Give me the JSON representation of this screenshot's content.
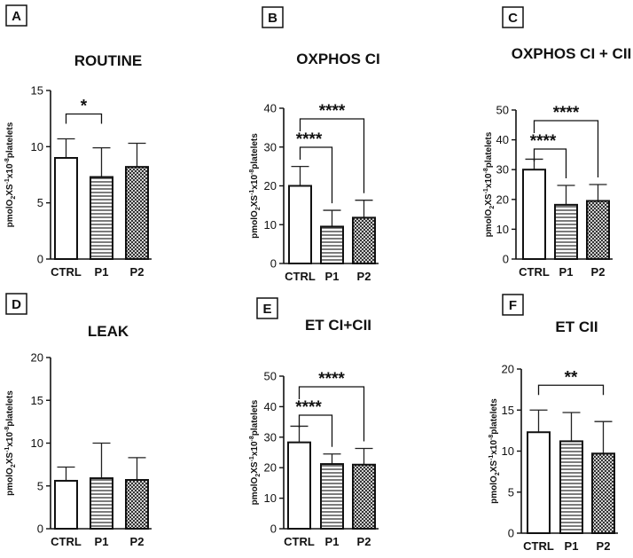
{
  "figure": {
    "y_axis_label": {
      "prefix": "pmolO",
      "sub2": "2",
      "mid": "XS",
      "sup1": "-1",
      "mid2": "x10",
      "sup2": "-8",
      "suffix": "platelets"
    }
  },
  "chart_data": [
    {
      "letter": "A",
      "type": "bar",
      "title": "ROUTINE",
      "categories": [
        "CTRL",
        "P1",
        "P2"
      ],
      "values": [
        9.0,
        7.3,
        8.2
      ],
      "errors": [
        1.7,
        2.6,
        2.1
      ],
      "ylim": [
        0,
        15
      ],
      "yticks": [
        "0",
        "5",
        "10",
        "15"
      ],
      "significance": [
        {
          "from": "CTRL",
          "to": "P1",
          "label": "*"
        }
      ]
    },
    {
      "letter": "B",
      "type": "bar",
      "title": "OXPHOS CI",
      "categories": [
        "CTRL",
        "P1",
        "P2"
      ],
      "values": [
        20.0,
        9.5,
        11.8
      ],
      "errors": [
        5.0,
        4.2,
        4.5
      ],
      "ylim": [
        0,
        40
      ],
      "yticks": [
        "0",
        "10",
        "20",
        "30",
        "40"
      ],
      "significance": [
        {
          "from": "CTRL",
          "to": "P1",
          "label": "****"
        },
        {
          "from": "CTRL",
          "to": "P2",
          "label": "****"
        }
      ]
    },
    {
      "letter": "C",
      "type": "bar",
      "title": "OXPHOS CI + CII",
      "categories": [
        "CTRL",
        "P1",
        "P2"
      ],
      "values": [
        30.0,
        18.2,
        19.5
      ],
      "errors": [
        3.5,
        6.5,
        5.5
      ],
      "ylim": [
        0,
        50
      ],
      "yticks": [
        "0",
        "10",
        "20",
        "30",
        "40",
        "50"
      ],
      "significance": [
        {
          "from": "CTRL",
          "to": "P1",
          "label": "****"
        },
        {
          "from": "CTRL",
          "to": "P2",
          "label": "****"
        }
      ]
    },
    {
      "letter": "D",
      "type": "bar",
      "title": "LEAK",
      "categories": [
        "CTRL",
        "P1",
        "P2"
      ],
      "values": [
        5.6,
        5.9,
        5.7
      ],
      "errors": [
        1.6,
        4.1,
        2.6
      ],
      "ylim": [
        0,
        20
      ],
      "yticks": [
        "0",
        "5",
        "10",
        "15",
        "20"
      ],
      "significance": []
    },
    {
      "letter": "E",
      "type": "bar",
      "title": "ET CI+CII",
      "categories": [
        "CTRL",
        "P1",
        "P2"
      ],
      "values": [
        28.3,
        21.2,
        21.0
      ],
      "errors": [
        5.3,
        3.3,
        5.3
      ],
      "ylim": [
        0,
        50
      ],
      "yticks": [
        "0",
        "10",
        "20",
        "30",
        "40",
        "50"
      ],
      "significance": [
        {
          "from": "CTRL",
          "to": "P1",
          "label": "****"
        },
        {
          "from": "CTRL",
          "to": "P2",
          "label": "****"
        }
      ]
    },
    {
      "letter": "F",
      "type": "bar",
      "title": "ET CII",
      "categories": [
        "CTRL",
        "P1",
        "P2"
      ],
      "values": [
        12.3,
        11.2,
        9.7
      ],
      "errors": [
        2.7,
        3.5,
        3.9
      ],
      "ylim": [
        0,
        20
      ],
      "yticks": [
        "0",
        "5",
        "10",
        "15",
        "20"
      ],
      "significance": [
        {
          "from": "CTRL",
          "to": "P2",
          "label": "**"
        }
      ]
    }
  ]
}
